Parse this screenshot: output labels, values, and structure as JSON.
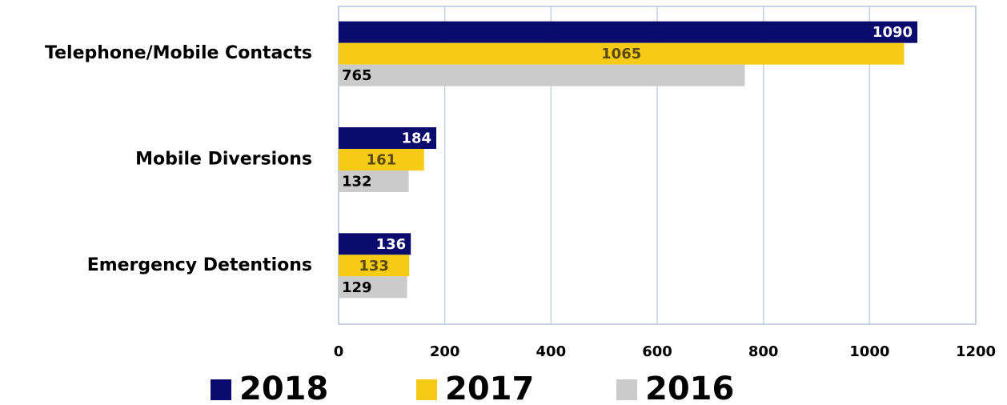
{
  "chart_data": {
    "type": "barh",
    "categories": [
      "Telephone/Mobile Contacts",
      "Mobile Diversions",
      "Emergency Detentions"
    ],
    "series": [
      {
        "name": "2018",
        "color": "#0b0b6e",
        "values": [
          1090,
          184,
          136
        ]
      },
      {
        "name": "2017",
        "color": "#f6cb16",
        "values": [
          1065,
          161,
          133
        ]
      },
      {
        "name": "2016",
        "color": "#cbcbcb",
        "values": [
          765,
          132,
          129
        ]
      }
    ],
    "xlim": [
      0,
      1200
    ],
    "xticks": [
      0,
      200,
      400,
      600,
      800,
      1000,
      1200
    ],
    "grid": true,
    "legend": "bottom"
  }
}
